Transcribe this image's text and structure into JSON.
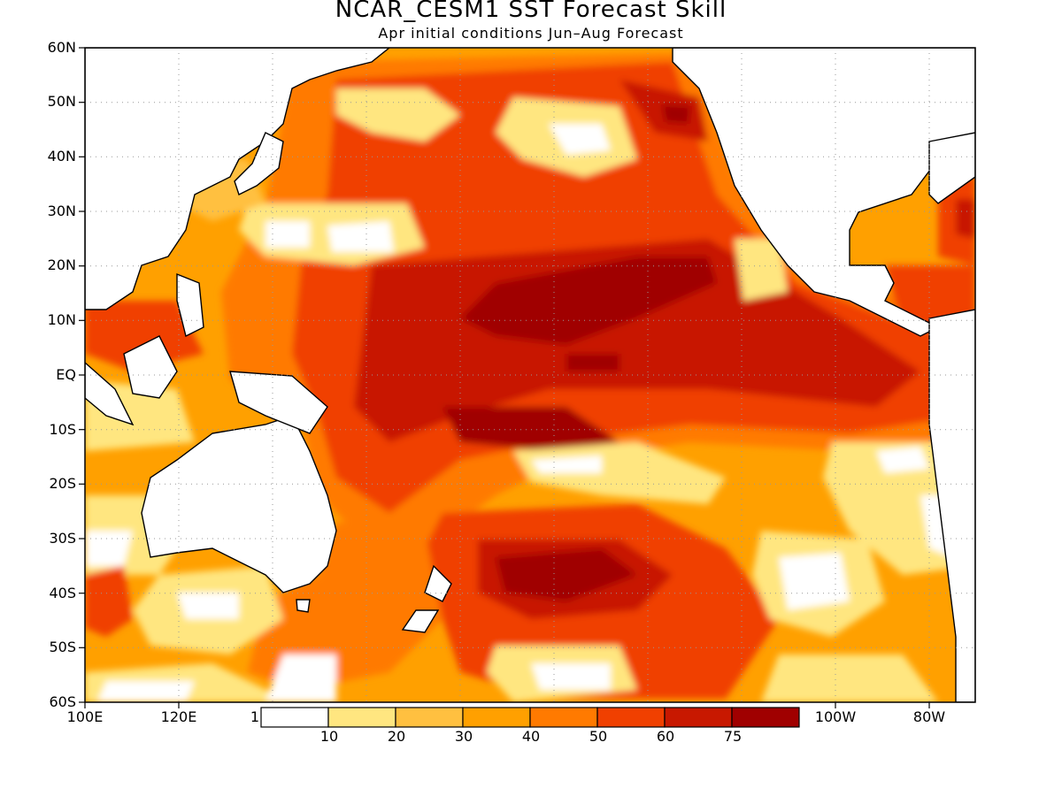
{
  "title": "NCAR_CESM1 SST Forecast Skill",
  "subtitle": "Apr initial conditions  Jun–Aug Forecast",
  "y_axis_labels": [
    "60N",
    "50N",
    "40N",
    "30N",
    "20N",
    "10N",
    "EQ",
    "10S",
    "20S",
    "30S",
    "40S",
    "50S",
    "60S"
  ],
  "x_axis_labels": [
    "100E",
    "120E",
    "1",
    "100W",
    "80W"
  ],
  "colorbar": {
    "bins": [
      "#ffffff",
      "#ffe680",
      "#ffc040",
      "#ffa000",
      "#ff7a00",
      "#f04000",
      "#c81800",
      "#a00000"
    ],
    "tick_labels": [
      "10",
      "20",
      "30",
      "40",
      "50",
      "60",
      "75"
    ]
  },
  "colors": {
    "land": "#ffffff",
    "coastline": "#000000",
    "gridline": "#999999"
  }
}
